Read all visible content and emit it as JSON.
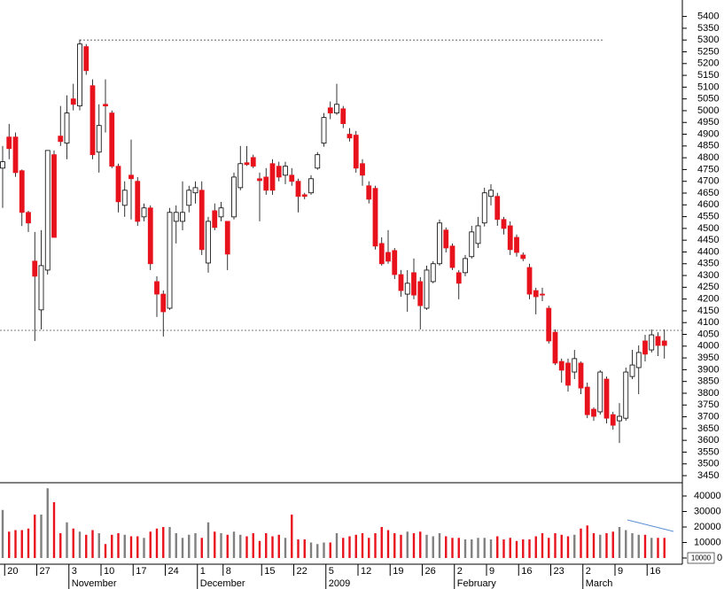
{
  "chart_data": {
    "type": "candlestick",
    "categories": [
      null,
      "20",
      null,
      null,
      null,
      null,
      "27",
      null,
      null,
      null,
      null,
      "3",
      null,
      null,
      null,
      null,
      "10",
      null,
      null,
      null,
      null,
      "17",
      null,
      null,
      null,
      null,
      "24",
      null,
      null,
      null,
      null,
      "1",
      null,
      null,
      null,
      "8",
      null,
      null,
      null,
      null,
      null,
      "15",
      null,
      null,
      null,
      null,
      "22",
      null,
      null,
      null,
      null,
      "5",
      null,
      null,
      null,
      null,
      "12",
      null,
      null,
      null,
      null,
      "19",
      null,
      null,
      null,
      null,
      "26",
      null,
      null,
      null,
      null,
      "2",
      null,
      null,
      null,
      null,
      "9",
      null,
      null,
      null,
      null,
      "16",
      null,
      null,
      null,
      null,
      "23",
      null,
      null,
      null,
      null,
      "2",
      null,
      null,
      null,
      null,
      "9",
      null,
      null,
      null,
      null,
      "16",
      null,
      null
    ],
    "months": [
      null,
      null,
      null,
      null,
      null,
      null,
      null,
      null,
      null,
      null,
      null,
      "November",
      null,
      null,
      null,
      null,
      null,
      null,
      null,
      null,
      null,
      null,
      null,
      null,
      null,
      null,
      null,
      null,
      null,
      null,
      null,
      "December",
      null,
      null,
      null,
      null,
      null,
      null,
      null,
      null,
      null,
      null,
      null,
      null,
      null,
      null,
      null,
      null,
      null,
      null,
      null,
      "2009",
      null,
      null,
      null,
      null,
      null,
      null,
      null,
      null,
      null,
      null,
      null,
      null,
      null,
      null,
      null,
      null,
      null,
      null,
      null,
      "February",
      null,
      null,
      null,
      null,
      null,
      null,
      null,
      null,
      null,
      null,
      null,
      null,
      null,
      null,
      null,
      null,
      null,
      null,
      null,
      "March",
      null,
      null,
      null,
      null,
      null,
      null,
      null,
      null,
      null,
      null,
      null,
      null
    ],
    "open": [
      4756,
      4888,
      4888,
      4745,
      4568,
      4361,
      4154,
      4323,
      4813,
      4892,
      4862,
      5050,
      5020,
      5272,
      5106,
      4824,
      5027,
      4990,
      4764,
      4598,
      4726,
      4700,
      4549,
      4587,
      4274,
      4221,
      4161,
      4530,
      4530,
      4598,
      4651,
      4662,
      4353,
      4575,
      4549,
      4530,
      4549,
      4673,
      4779,
      4801,
      4711,
      4718,
      4775,
      4764,
      4726,
      4726,
      4700,
      4643,
      4651,
      4756,
      4862,
      5012,
      4990,
      5008,
      4900,
      4896,
      4775,
      4681,
      4670,
      4436,
      4398,
      4406,
      4304,
      4221,
      4312,
      4274,
      4161,
      4274,
      4350,
      4493,
      4425,
      4312,
      4312,
      4380,
      4436,
      4523,
      4636,
      4636,
      4538,
      4511,
      4462,
      4387,
      4334,
      4236,
      4221,
      4161,
      4059,
      3935,
      3928,
      3890,
      3928,
      3826,
      3732,
      3721,
      3860,
      3709,
      3683,
      3694,
      3871,
      3909,
      4022,
      3984,
      4041,
      4022
    ],
    "high": [
      4850,
      4944,
      4907,
      4750,
      4575,
      4485,
      4493,
      4831,
      4831,
      5020,
      5065,
      5114,
      5302,
      5283,
      5133,
      5027,
      5133,
      5001,
      4775,
      4700,
      4877,
      4718,
      4606,
      4598,
      4297,
      4237,
      4587,
      4598,
      4700,
      4681,
      4700,
      4700,
      4549,
      4606,
      4613,
      4530,
      4737,
      4850,
      4850,
      4813,
      4737,
      4756,
      4794,
      4783,
      4783,
      4756,
      4711,
      4651,
      4726,
      4824,
      4990,
      5039,
      5114,
      5020,
      4926,
      4914,
      4794,
      4700,
      4681,
      4462,
      4493,
      4417,
      4323,
      4323,
      4372,
      4293,
      4342,
      4361,
      4538,
      4504,
      4436,
      4323,
      4387,
      4511,
      4549,
      4673,
      4688,
      4651,
      4549,
      4530,
      4474,
      4398,
      4350,
      4248,
      4248,
      4172,
      4071,
      3947,
      3947,
      3984,
      3935,
      3845,
      3740,
      3898,
      3871,
      3721,
      3758,
      3909,
      3984,
      4003,
      4048,
      4071,
      4059,
      4071
    ],
    "low": [
      4587,
      4794,
      4719,
      4510,
      4485,
      4022,
      4071,
      4304,
      4462,
      4850,
      4794,
      5001,
      5001,
      5152,
      4794,
      4737,
      4907,
      4756,
      4568,
      4549,
      4538,
      4511,
      4530,
      4323,
      4124,
      4041,
      4154,
      4436,
      4492,
      4568,
      4606,
      4387,
      4312,
      4492,
      4530,
      4323,
      4538,
      4662,
      4765,
      4756,
      4530,
      4643,
      4643,
      4700,
      4688,
      4681,
      4568,
      4624,
      4643,
      4749,
      4847,
      4964,
      4982,
      4926,
      4869,
      4737,
      4681,
      4606,
      4410,
      4342,
      4350,
      4285,
      4210,
      4146,
      4199,
      4071,
      4154,
      4267,
      4342,
      4398,
      4323,
      4199,
      4297,
      4372,
      4417,
      4508,
      4598,
      4511,
      4474,
      4387,
      4380,
      4361,
      4199,
      4135,
      4191,
      4011,
      3920,
      3845,
      3807,
      3860,
      3796,
      3694,
      3683,
      3709,
      3672,
      3645,
      3589,
      3683,
      3860,
      3796,
      3935,
      3973,
      3958,
      3947
    ],
    "close": [
      4783,
      4839,
      4737,
      4568,
      4523,
      4297,
      4342,
      4831,
      4462,
      4869,
      4990,
      5027,
      5283,
      5170,
      4813,
      4937,
      5020,
      4764,
      4613,
      4662,
      4711,
      4530,
      4587,
      4350,
      4221,
      4146,
      4568,
      4568,
      4568,
      4662,
      4673,
      4410,
      4530,
      4504,
      4587,
      4391,
      4718,
      4775,
      4771,
      4764,
      4703,
      4662,
      4662,
      4718,
      4764,
      4700,
      4636,
      4636,
      4711,
      4813,
      4971,
      4990,
      5027,
      4945,
      4884,
      4756,
      4726,
      4624,
      4425,
      4350,
      4361,
      4304,
      4236,
      4267,
      4217,
      4172,
      4323,
      4350,
      4523,
      4417,
      4334,
      4267,
      4372,
      4485,
      4511,
      4651,
      4662,
      4538,
      4500,
      4410,
      4398,
      4372,
      4221,
      4210,
      4217,
      4022,
      3928,
      3898,
      3834,
      3947,
      3822,
      3709,
      3702,
      3890,
      3694,
      3664,
      3702,
      3890,
      3920,
      3973,
      3966,
      4048,
      4003,
      4003
    ],
    "volume": [
      31000,
      17000,
      18000,
      18000,
      19000,
      28000,
      28000,
      45000,
      36000,
      16000,
      23000,
      19000,
      17000,
      15000,
      18000,
      16000,
      9000,
      15000,
      16000,
      15000,
      14000,
      14000,
      13000,
      17000,
      19000,
      20000,
      20000,
      16000,
      13000,
      15000,
      16000,
      13000,
      23000,
      17000,
      16000,
      15000,
      17000,
      15000,
      14000,
      16000,
      11000,
      16000,
      14000,
      15000,
      13000,
      28000,
      12000,
      12000,
      10000,
      9000,
      10000,
      10000,
      16000,
      13000,
      14000,
      15000,
      16000,
      13000,
      16000,
      20000,
      18000,
      16000,
      15000,
      17000,
      16000,
      17000,
      15000,
      14000,
      16000,
      14000,
      13000,
      13000,
      12000,
      12000,
      13000,
      13000,
      12000,
      14000,
      12000,
      13000,
      11000,
      12000,
      12000,
      14000,
      16000,
      13000,
      16000,
      15000,
      14000,
      15000,
      19000,
      21000,
      16000,
      15000,
      16000,
      17000,
      20000,
      18000,
      16000,
      15000,
      15000,
      13000,
      13000,
      13000
    ],
    "up_color": "#ffffff",
    "down_color": "#e8121c",
    "volume_up_color": "#808080",
    "volume_down_color": "#e8121c",
    "ylim": [
      3420,
      5470
    ],
    "yticks": [
      3450,
      3500,
      3550,
      3600,
      3650,
      3700,
      3750,
      3800,
      3850,
      3900,
      3950,
      4000,
      4050,
      4100,
      4150,
      4200,
      4250,
      4300,
      4350,
      4400,
      4450,
      4500,
      4550,
      4600,
      4650,
      4700,
      4750,
      4800,
      4850,
      4900,
      4950,
      5000,
      5050,
      5100,
      5150,
      5200,
      5250,
      5300,
      5350,
      5400
    ],
    "reference_lines": [
      5300,
      4067
    ],
    "vlim": [
      0,
      48000
    ],
    "vticks": [
      0,
      10000,
      20000,
      30000,
      40000
    ],
    "volume_unit_label": "10000"
  }
}
